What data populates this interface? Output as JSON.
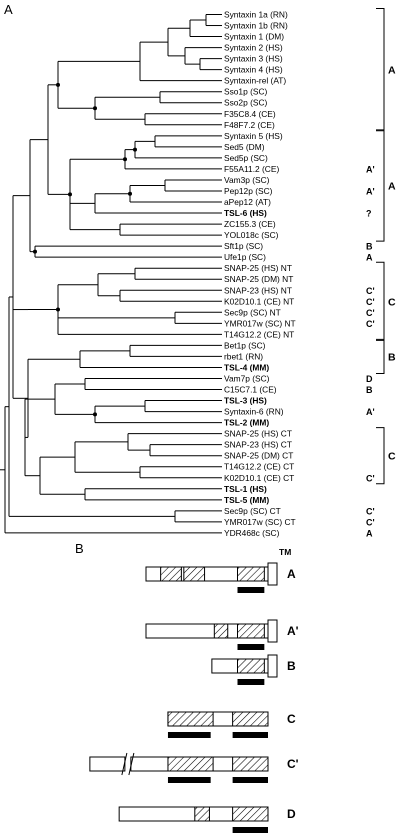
{
  "panel_a": {
    "label": "A",
    "taxa": [
      {
        "name": "Syntaxin 1a (RN)",
        "cls": ""
      },
      {
        "name": "Syntaxin 1b (RN)",
        "cls": ""
      },
      {
        "name": "Syntaxin 1 (DM)",
        "cls": ""
      },
      {
        "name": "Syntaxin 2 (HS)",
        "cls": ""
      },
      {
        "name": "Syntaxin 3 (HS)",
        "cls": ""
      },
      {
        "name": "Syntaxin 4 (HS)",
        "cls": ""
      },
      {
        "name": "Syntaxin-rel (AT)",
        "cls": ""
      },
      {
        "name": "Sso1p (SC)",
        "cls": ""
      },
      {
        "name": "Sso2p (SC)",
        "cls": ""
      },
      {
        "name": "F35C8.4 (CE)",
        "cls": ""
      },
      {
        "name": "F48F7.2 (CE)",
        "cls": ""
      },
      {
        "name": "Syntaxin 5 (HS)",
        "cls": ""
      },
      {
        "name": "Sed5 (DM)",
        "cls": ""
      },
      {
        "name": "Sed5p (SC)",
        "cls": ""
      },
      {
        "name": "F55A11.2 (CE)",
        "cls": "A'"
      },
      {
        "name": "Vam3p (SC)",
        "cls": ""
      },
      {
        "name": "Pep12p (SC)",
        "cls": "A'"
      },
      {
        "name": "aPep12 (AT)",
        "cls": ""
      },
      {
        "name": "TSL-6 (HS)",
        "cls": "?",
        "bold": true
      },
      {
        "name": "ZC155.3 (CE)",
        "cls": ""
      },
      {
        "name": "YOL018c (SC)",
        "cls": ""
      },
      {
        "name": "Sft1p (SC)",
        "cls": "B"
      },
      {
        "name": "Ufe1p (SC)",
        "cls": "A"
      },
      {
        "name": "SNAP-25 (HS) NT",
        "cls": ""
      },
      {
        "name": "SNAP-25 (DM) NT",
        "cls": ""
      },
      {
        "name": "SNAP-23 (HS) NT",
        "cls": "C'"
      },
      {
        "name": "K02D10.1 (CE) NT",
        "cls": "C'"
      },
      {
        "name": "Sec9p (SC) NT",
        "cls": "C'"
      },
      {
        "name": "YMR017w (SC) NT",
        "cls": "C'"
      },
      {
        "name": "T14G12.2 (CE) NT",
        "cls": ""
      },
      {
        "name": "Bet1p (SC)",
        "cls": ""
      },
      {
        "name": "rbet1 (RN)",
        "cls": ""
      },
      {
        "name": "TSL-4 (MM)",
        "cls": "",
        "bold": true
      },
      {
        "name": "Vam7p (SC)",
        "cls": "D"
      },
      {
        "name": "C15C7.1 (CE)",
        "cls": "B"
      },
      {
        "name": "TSL-3 (HS)",
        "cls": "",
        "bold": true
      },
      {
        "name": "Syntaxin-6 (RN)",
        "cls": "A'"
      },
      {
        "name": "TSL-2 (MM)",
        "cls": "",
        "bold": true
      },
      {
        "name": "SNAP-25 (HS) CT",
        "cls": ""
      },
      {
        "name": "SNAP-23 (HS) CT",
        "cls": ""
      },
      {
        "name": "SNAP-25 (DM) CT",
        "cls": ""
      },
      {
        "name": "T14G12.2 (CE) CT",
        "cls": ""
      },
      {
        "name": "K02D10.1 (CE) CT",
        "cls": "C'"
      },
      {
        "name": "TSL-1 (HS)",
        "cls": "",
        "bold": true
      },
      {
        "name": "TSL-5 (MM)",
        "cls": "",
        "bold": true
      },
      {
        "name": "Sec9p (SC) CT",
        "cls": "C'"
      },
      {
        "name": "YMR017w (SC) CT",
        "cls": "C'"
      },
      {
        "name": "YDR468c (SC)",
        "cls": "A"
      }
    ],
    "brackets": [
      {
        "label": "A",
        "from": 0,
        "to": 10
      },
      {
        "label": "A",
        "from": 11,
        "to": 20
      },
      {
        "label": "C",
        "from": 23,
        "to": 29
      },
      {
        "label": "B",
        "from": 30,
        "to": 32
      },
      {
        "label": "C",
        "from": 38,
        "to": 42
      }
    ]
  },
  "panel_b": {
    "label": "B",
    "tm_label": "TM",
    "domains": [
      {
        "label": "A",
        "extent": [
          0.0,
          1.0
        ],
        "hatch": [
          [
            0.12,
            0.29
          ],
          [
            0.31,
            0.48
          ],
          [
            0.75,
            0.97
          ]
        ],
        "bar": [
          0.75,
          0.97
        ],
        "tm": true,
        "break": false
      },
      {
        "label": "A'",
        "extent": [
          0.0,
          1.0
        ],
        "hatch": [
          [
            0.56,
            0.67
          ],
          [
            0.75,
            0.97
          ]
        ],
        "bar": [
          0.75,
          0.97
        ],
        "tm": true,
        "break": false
      },
      {
        "label": "B",
        "extent": [
          0.54,
          1.0
        ],
        "hatch": [
          [
            0.75,
            0.97
          ]
        ],
        "bar": [
          0.75,
          0.97
        ],
        "tm": true,
        "break": false
      },
      {
        "label": "C",
        "extent": [
          0.18,
          1.0
        ],
        "hatch": [
          [
            0.18,
            0.55
          ],
          [
            0.71,
            1.0
          ]
        ],
        "bar": null,
        "bars": [
          [
            0.18,
            0.53
          ],
          [
            0.71,
            1.0
          ]
        ],
        "tm": false,
        "break": false
      },
      {
        "label": "C'",
        "extent": [
          -0.46,
          1.0
        ],
        "hatch": [
          [
            0.18,
            0.55
          ],
          [
            0.71,
            1.0
          ]
        ],
        "bar": null,
        "bars": [
          [
            0.18,
            0.53
          ],
          [
            0.71,
            1.0
          ]
        ],
        "tm": false,
        "break": true
      },
      {
        "label": "D",
        "extent": [
          -0.22,
          1.0
        ],
        "hatch": [
          [
            0.4,
            0.52
          ],
          [
            0.71,
            1.0
          ]
        ],
        "bar": [
          0.71,
          1.0
        ],
        "tm": false,
        "break": false
      }
    ]
  },
  "colors": {
    "ink": "#000000",
    "paper": "#ffffff"
  }
}
